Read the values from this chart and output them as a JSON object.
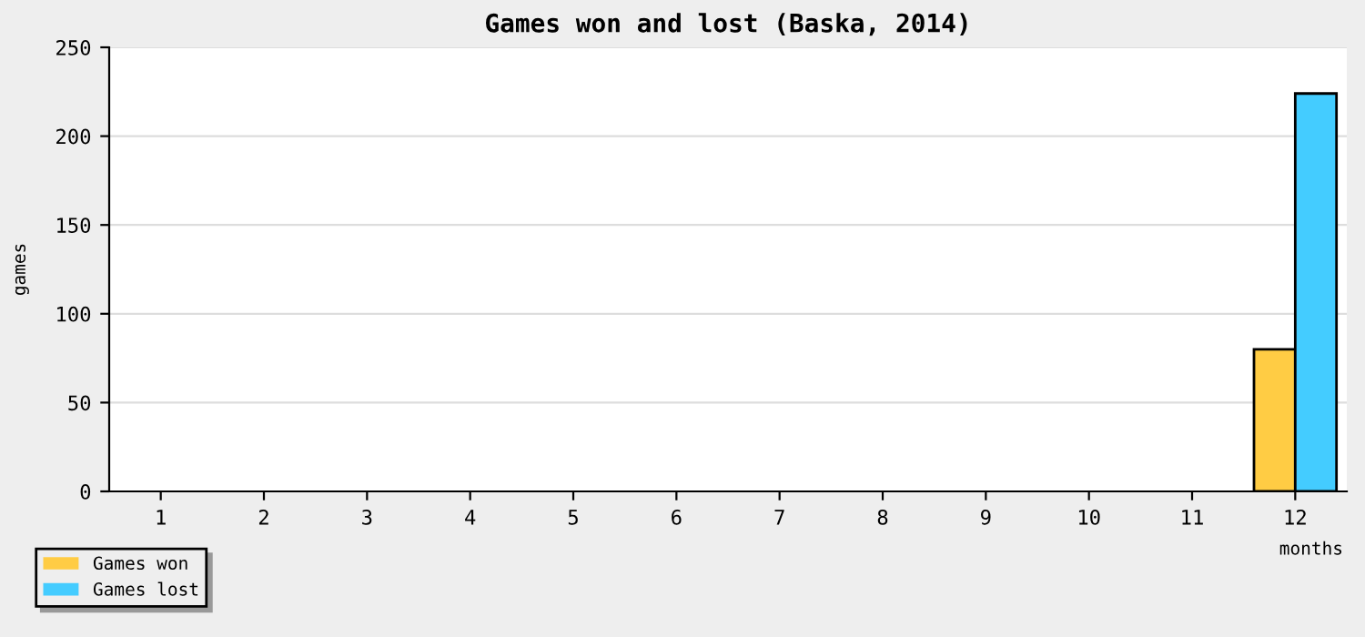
{
  "chart_data": {
    "type": "bar",
    "title": "Games won and lost (Baska, 2014)",
    "xlabel": "months",
    "ylabel": "games",
    "categories": [
      "1",
      "2",
      "3",
      "4",
      "5",
      "6",
      "7",
      "8",
      "9",
      "10",
      "11",
      "12"
    ],
    "series": [
      {
        "name": "Games won",
        "color": "#ffcc44",
        "values": [
          0,
          0,
          0,
          0,
          0,
          0,
          0,
          0,
          0,
          0,
          0,
          80
        ]
      },
      {
        "name": "Games lost",
        "color": "#44ccff",
        "values": [
          0,
          0,
          0,
          0,
          0,
          0,
          0,
          0,
          0,
          0,
          0,
          224
        ]
      }
    ],
    "ylim": [
      0,
      250
    ],
    "yticks": [
      0,
      50,
      100,
      150,
      200,
      250
    ],
    "grid": "y",
    "legend": "bottom left"
  }
}
